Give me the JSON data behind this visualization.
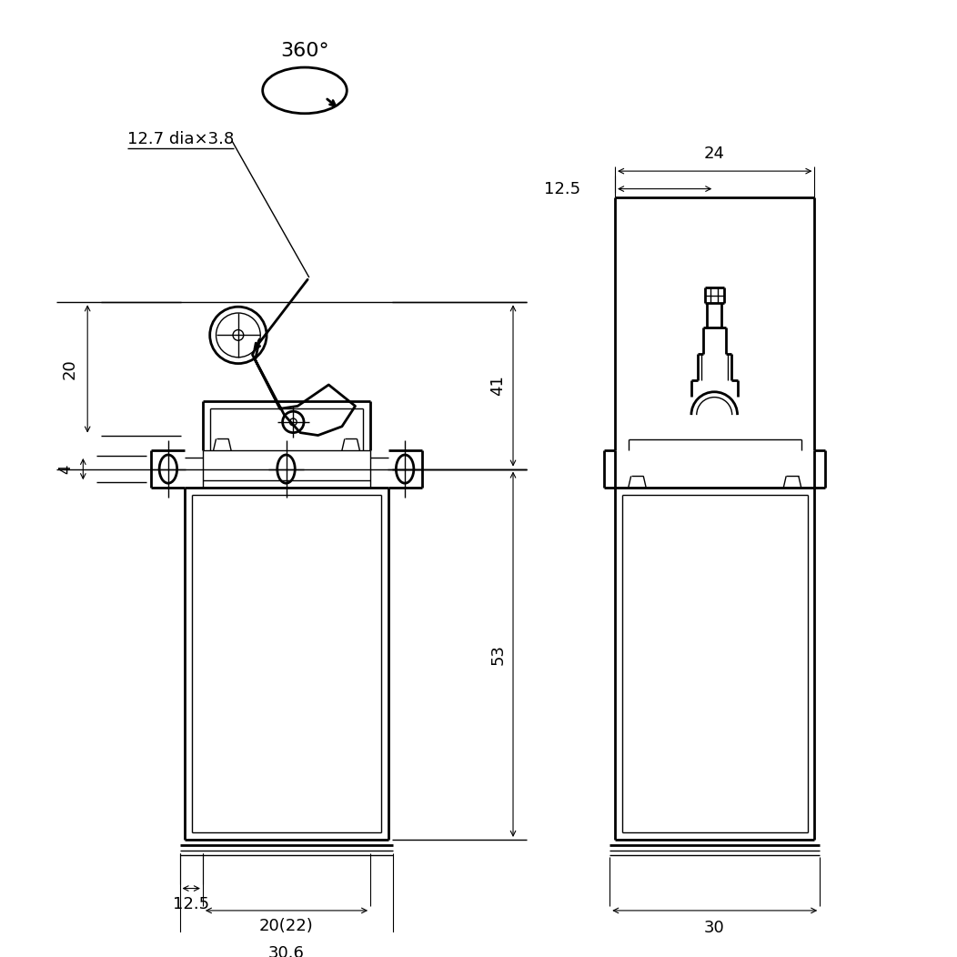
{
  "bg_color": "#ffffff",
  "line_color": "#000000",
  "dims": {
    "roller_dia_label": "12.7 dia×3.8",
    "dim_20": "20",
    "dim_41": "41",
    "dim_4": "4",
    "dim_53": "53",
    "dim_12_5_left": "12.5",
    "dim_20_22": "20(22)",
    "dim_30_6": "30.6",
    "dim_360": "360°",
    "dim_24": "24",
    "dim_12_5_right": "12.5",
    "dim_30_right": "30"
  },
  "lw_outer": 2.0,
  "lw_inner": 1.0,
  "lw_dim": 0.8,
  "fs_dim": 13,
  "fs_label": 13
}
